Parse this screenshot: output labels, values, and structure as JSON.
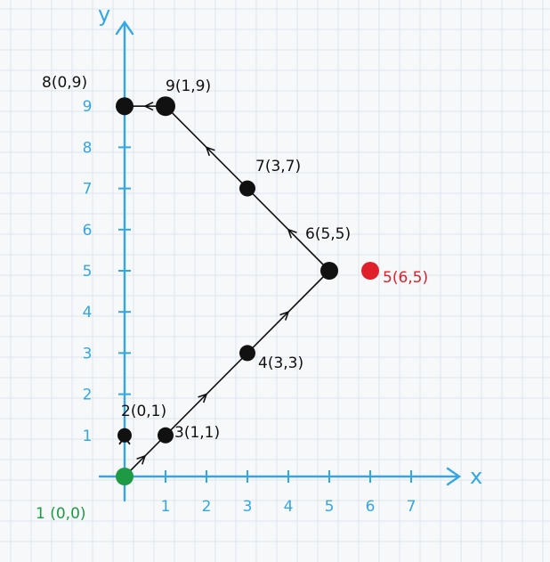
{
  "axes": {
    "x_label": "x",
    "y_label": "y",
    "x_ticks": [
      "1",
      "2",
      "3",
      "4",
      "5",
      "6",
      "7"
    ],
    "y_ticks": [
      "1",
      "2",
      "3",
      "4",
      "5",
      "6",
      "7",
      "8",
      "9"
    ],
    "color": "#32a6e6"
  },
  "points": [
    {
      "x": 0,
      "y": 0,
      "label": "1 (0,0)",
      "color": "#1e9a45"
    },
    {
      "x": 0,
      "y": 1,
      "label": "2(0,1)",
      "color": "#111111"
    },
    {
      "x": 1,
      "y": 1,
      "label": "3(1,1)",
      "color": "#111111"
    },
    {
      "x": 3,
      "y": 3,
      "label": "4(3,3)",
      "color": "#111111"
    },
    {
      "x": 6,
      "y": 5,
      "label": "5(6,5)",
      "color": "#e0202a"
    },
    {
      "x": 5,
      "y": 5,
      "label": "6(5,5)",
      "color": "#111111"
    },
    {
      "x": 3,
      "y": 7,
      "label": "7(3,7)",
      "color": "#111111"
    },
    {
      "x": 0,
      "y": 9,
      "label": "8(0,9)",
      "color": "#111111"
    },
    {
      "x": 1,
      "y": 9,
      "label": "9(1,9)",
      "color": "#111111"
    }
  ],
  "path_order": [
    0,
    2,
    3,
    5,
    6,
    8,
    7
  ],
  "colors": {
    "ink": "#111111",
    "start": "#1e9a45",
    "highlight": "#e0202a"
  }
}
